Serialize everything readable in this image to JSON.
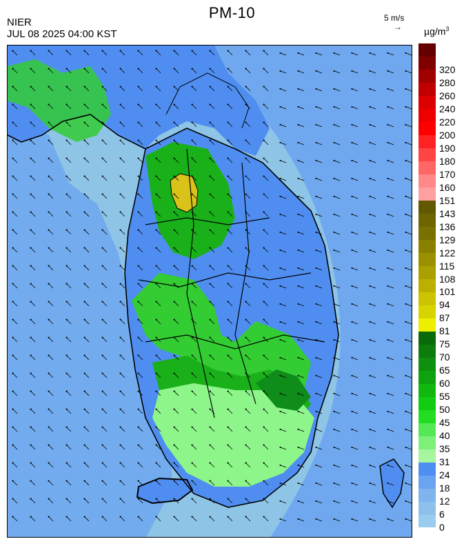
{
  "header": {
    "title": "PM-10",
    "agency": "NIER",
    "timestamp": "JUL 08 2025 04:00 KST",
    "wind_reference": "5 m/s",
    "wind_reference_arrow": "→",
    "unit": "µg/m",
    "unit_exponent": "3"
  },
  "colors": {
    "sea_low": "#8ec4e6",
    "sea_mid": "#6fa8ee",
    "land_low": "#4f8ef0",
    "green_light": "#8df58a",
    "green": "#33cc33",
    "green_mid": "#1ab01a",
    "green_dark": "#0f8c1a",
    "yellow_high": "#d9c21a",
    "boundary": "#000000"
  },
  "legend": {
    "steps": [
      {
        "label": "0",
        "color": "#99ccee"
      },
      {
        "label": "6",
        "color": "#8ec0ec"
      },
      {
        "label": "12",
        "color": "#7fb4ef"
      },
      {
        "label": "18",
        "color": "#6aa4f0"
      },
      {
        "label": "24",
        "color": "#4d8ff0"
      },
      {
        "label": "31",
        "color": "#a8f5a0"
      },
      {
        "label": "35",
        "color": "#7df07a"
      },
      {
        "label": "40",
        "color": "#55e855"
      },
      {
        "label": "45",
        "color": "#22dd22"
      },
      {
        "label": "50",
        "color": "#11cc11"
      },
      {
        "label": "55",
        "color": "#10b810"
      },
      {
        "label": "60",
        "color": "#0fa20f"
      },
      {
        "label": "65",
        "color": "#0e900e"
      },
      {
        "label": "70",
        "color": "#0c7c0c"
      },
      {
        "label": "75",
        "color": "#0a6a0a"
      },
      {
        "label": "81",
        "color": "#eeee00"
      },
      {
        "label": "87",
        "color": "#d8d400"
      },
      {
        "label": "94",
        "color": "#ccc400"
      },
      {
        "label": "101",
        "color": "#bbb000"
      },
      {
        "label": "108",
        "color": "#aaa000"
      },
      {
        "label": "115",
        "color": "#9a9000"
      },
      {
        "label": "122",
        "color": "#8a8000"
      },
      {
        "label": "129",
        "color": "#7a7000"
      },
      {
        "label": "136",
        "color": "#6e6400"
      },
      {
        "label": "143",
        "color": "#625800"
      },
      {
        "label": "151",
        "color": "#ffa0a0"
      },
      {
        "label": "160",
        "color": "#ff8888"
      },
      {
        "label": "170",
        "color": "#ff6666"
      },
      {
        "label": "180",
        "color": "#ff4444"
      },
      {
        "label": "190",
        "color": "#ff2222"
      },
      {
        "label": "200",
        "color": "#ff0000"
      },
      {
        "label": "220",
        "color": "#ee0000"
      },
      {
        "label": "240",
        "color": "#dd0000"
      },
      {
        "label": "260",
        "color": "#c00000"
      },
      {
        "label": "280",
        "color": "#a00000"
      },
      {
        "label": "320",
        "color": "#800000"
      },
      {
        "label": "",
        "color": "#660000"
      }
    ]
  }
}
